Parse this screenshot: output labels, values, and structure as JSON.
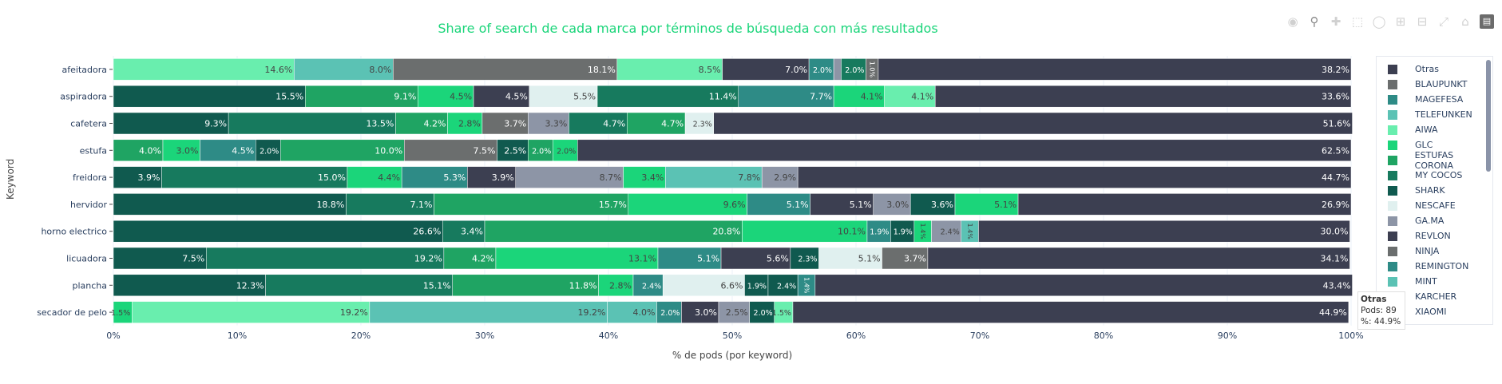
{
  "title": "Share of search de cada marca por términos de búsqueda con más resultados",
  "modebar": [
    "camera-icon",
    "zoom-icon",
    "pan-icon",
    "box-select-icon",
    "lasso-icon",
    "zoom-in-icon",
    "zoom-out-icon",
    "autoscale-icon",
    "reset-axes-icon",
    "plotly-logo-icon"
  ],
  "colors": {
    "O": "#3c3f51",
    "B": "#6b6e6e",
    "M": "#2e8b86",
    "T": "#5bc2b4",
    "A": "#69eeae",
    "G": "#1bd57a",
    "E": "#1fa463",
    "C": "#177a5e",
    "S": "#105a4f",
    "N": "#e0f0ef",
    "GA": "#8d95a6"
  },
  "legend": [
    {
      "name": "Otras",
      "color": "#3c3f51"
    },
    {
      "name": "BLAUPUNKT",
      "color": "#6b6e6e"
    },
    {
      "name": "MAGEFESA",
      "color": "#2e8b86"
    },
    {
      "name": "TELEFUNKEN",
      "color": "#5bc2b4"
    },
    {
      "name": "AIWA",
      "color": "#69eeae"
    },
    {
      "name": "GLC",
      "color": "#1bd57a"
    },
    {
      "name": "ESTUFAS CORONA",
      "color": "#1fa463"
    },
    {
      "name": "MY COCOS",
      "color": "#177a5e"
    },
    {
      "name": "SHARK",
      "color": "#105a4f"
    },
    {
      "name": "NESCAFE",
      "color": "#e0f0ef"
    },
    {
      "name": "GA.MA",
      "color": "#8d95a6"
    },
    {
      "name": "REVLON",
      "color": "#3c3f51"
    },
    {
      "name": "NINJA",
      "color": "#6b6e6e"
    },
    {
      "name": "REMINGTON",
      "color": "#2e8b86"
    },
    {
      "name": "MINT",
      "color": "#5bc2b4"
    },
    {
      "name": "KARCHER",
      "color": "#69eeae"
    },
    {
      "name": "XIAOMI",
      "color": "#1bd57a"
    }
  ],
  "tooltip": {
    "title": "Otras",
    "pods": "Pods: 89",
    "pct": "%: 44.9%"
  },
  "chart_data": {
    "type": "bar",
    "orientation": "horizontal-stacked",
    "title": "Share of search de cada marca por términos de búsqueda con más resultados",
    "xlabel": "% de pods (por keyword)",
    "ylabel": "Keyword",
    "xlim": [
      0,
      100
    ],
    "xticks": [
      "0%",
      "10%",
      "20%",
      "30%",
      "40%",
      "50%",
      "60%",
      "70%",
      "80%",
      "90%",
      "100%"
    ],
    "grid": true,
    "legend_position": "right",
    "rows": [
      {
        "keyword": "afeitadora",
        "segments": [
          [
            "A",
            14.6
          ],
          [
            "T",
            8.0
          ],
          [
            "B",
            18.1
          ],
          [
            "A",
            8.5
          ],
          [
            "O",
            7.0
          ],
          [
            "M",
            2.0
          ],
          [
            "GA",
            0.6,
            ""
          ],
          [
            "C",
            2.0
          ],
          [
            "B",
            1.0
          ],
          [
            "O",
            38.2
          ]
        ]
      },
      {
        "keyword": "aspiradora",
        "segments": [
          [
            "S",
            15.5
          ],
          [
            "E",
            9.1
          ],
          [
            "G",
            4.5
          ],
          [
            "O",
            4.5
          ],
          [
            "N",
            5.5
          ],
          [
            "C",
            11.4
          ],
          [
            "M",
            7.7
          ],
          [
            "G",
            4.1
          ],
          [
            "A",
            4.1
          ],
          [
            "O",
            33.6
          ]
        ]
      },
      {
        "keyword": "cafetera",
        "segments": [
          [
            "S",
            9.3
          ],
          [
            "C",
            13.5
          ],
          [
            "E",
            4.2
          ],
          [
            "G",
            2.8
          ],
          [
            "B",
            3.7
          ],
          [
            "GA",
            3.3
          ],
          [
            "C",
            4.7
          ],
          [
            "E",
            4.7
          ],
          [
            "N",
            2.3
          ],
          [
            "O",
            51.6
          ]
        ]
      },
      {
        "keyword": "estufa",
        "segments": [
          [
            "E",
            4.0
          ],
          [
            "G",
            3.0
          ],
          [
            "M",
            4.5
          ],
          [
            "S",
            2.0
          ],
          [
            "E",
            10.0
          ],
          [
            "B",
            7.5
          ],
          [
            "S",
            2.5
          ],
          [
            "E",
            2.0
          ],
          [
            "G",
            2.0
          ],
          [
            "O",
            62.5
          ]
        ]
      },
      {
        "keyword": "freidora",
        "segments": [
          [
            "S",
            3.9
          ],
          [
            "C",
            15.0
          ],
          [
            "G",
            4.4
          ],
          [
            "M",
            5.3
          ],
          [
            "O",
            3.9
          ],
          [
            "GA",
            8.7
          ],
          [
            "G",
            3.4
          ],
          [
            "T",
            7.8
          ],
          [
            "GA",
            2.9
          ],
          [
            "O",
            44.7
          ]
        ]
      },
      {
        "keyword": "hervidor",
        "segments": [
          [
            "S",
            18.8
          ],
          [
            "C",
            7.1
          ],
          [
            "E",
            15.7
          ],
          [
            "G",
            9.6
          ],
          [
            "M",
            5.1
          ],
          [
            "O",
            5.1
          ],
          [
            "GA",
            3.0
          ],
          [
            "S",
            3.6
          ],
          [
            "G",
            5.1
          ],
          [
            "O",
            26.9
          ]
        ]
      },
      {
        "keyword": "horno electrico",
        "segments": [
          [
            "S",
            26.6
          ],
          [
            "C",
            3.4
          ],
          [
            "E",
            20.8
          ],
          [
            "G",
            10.1
          ],
          [
            "M",
            1.9
          ],
          [
            "S",
            1.9
          ],
          [
            "G",
            1.4
          ],
          [
            "GA",
            2.4
          ],
          [
            "T",
            1.4
          ],
          [
            "O",
            30.0
          ]
        ]
      },
      {
        "keyword": "licuadora",
        "segments": [
          [
            "S",
            7.5
          ],
          [
            "C",
            19.2
          ],
          [
            "E",
            4.2
          ],
          [
            "G",
            13.1
          ],
          [
            "M",
            5.1
          ],
          [
            "O",
            5.6
          ],
          [
            "S",
            2.3
          ],
          [
            "N",
            5.1
          ],
          [
            "B",
            3.7
          ],
          [
            "O",
            34.1
          ]
        ]
      },
      {
        "keyword": "plancha",
        "segments": [
          [
            "S",
            12.3
          ],
          [
            "C",
            15.1
          ],
          [
            "E",
            11.8
          ],
          [
            "G",
            2.8
          ],
          [
            "M",
            2.4
          ],
          [
            "N",
            6.6
          ],
          [
            "S",
            1.9
          ],
          [
            "S",
            2.4
          ],
          [
            "M",
            1.4
          ],
          [
            "O",
            43.4
          ]
        ]
      },
      {
        "keyword": "secador de pelo",
        "segments": [
          [
            "G",
            1.5
          ],
          [
            "A",
            19.2
          ],
          [
            "T",
            19.2
          ],
          [
            "T",
            4.0
          ],
          [
            "M",
            2.0
          ],
          [
            "O",
            3.0
          ],
          [
            "GA",
            2.5
          ],
          [
            "S",
            2.0
          ],
          [
            "A",
            1.5
          ],
          [
            "O",
            44.9
          ]
        ]
      }
    ]
  }
}
